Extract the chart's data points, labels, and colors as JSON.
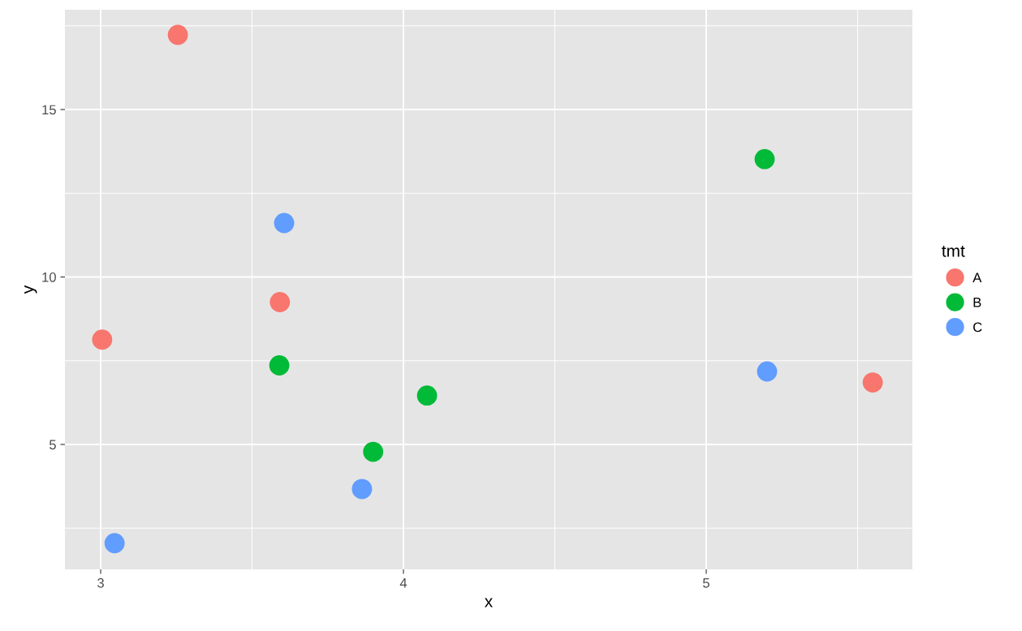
{
  "chart_data": {
    "type": "scatter",
    "xlabel": "x",
    "ylabel": "y",
    "legend_title": "tmt",
    "xlim": [
      2.882,
      5.681
    ],
    "ylim": [
      1.27,
      17.98
    ],
    "xticks": [
      3,
      4,
      5
    ],
    "yticks": [
      5,
      10,
      15
    ],
    "grid": true,
    "legend": "right",
    "marker": "circle",
    "series": [
      {
        "name": "A",
        "color": "#f8766d",
        "x": [
          3.255,
          3.592,
          3.005,
          5.55
        ],
        "values": [
          17.23,
          9.25,
          8.13,
          6.85
        ]
      },
      {
        "name": "B",
        "color": "#00ba38",
        "x": [
          5.193,
          3.59,
          4.078,
          3.9
        ],
        "values": [
          13.52,
          7.36,
          6.46,
          4.78
        ]
      },
      {
        "name": "C",
        "color": "#619cff",
        "x": [
          3.606,
          3.046,
          3.863,
          5.201
        ],
        "values": [
          11.61,
          2.05,
          3.67,
          7.18
        ]
      }
    ]
  }
}
